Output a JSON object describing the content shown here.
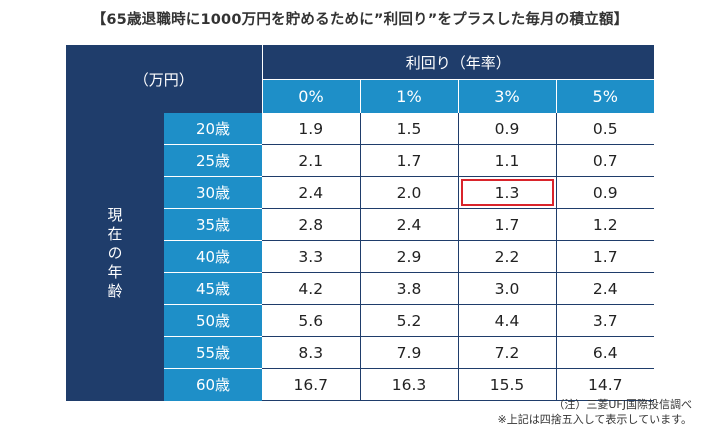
{
  "title": "【65歳退職時に1000万円を貯めるために”利回り”をプラスした毎月の積立額】",
  "table": {
    "unit_label": "（万円）",
    "rate_header": "利回り（年率）",
    "rates": [
      "0%",
      "1%",
      "3%",
      "5%"
    ],
    "row_group_label": "現在の年齢",
    "rows": [
      {
        "age": "20歳",
        "values": [
          "1.9",
          "1.5",
          "0.9",
          "0.5"
        ]
      },
      {
        "age": "25歳",
        "values": [
          "2.1",
          "1.7",
          "1.1",
          "0.7"
        ]
      },
      {
        "age": "30歳",
        "values": [
          "2.4",
          "2.0",
          "1.3",
          "0.9"
        ]
      },
      {
        "age": "35歳",
        "values": [
          "2.8",
          "2.4",
          "1.7",
          "1.2"
        ]
      },
      {
        "age": "40歳",
        "values": [
          "3.3",
          "2.9",
          "2.2",
          "1.7"
        ]
      },
      {
        "age": "45歳",
        "values": [
          "4.2",
          "3.8",
          "3.0",
          "2.4"
        ]
      },
      {
        "age": "50歳",
        "values": [
          "5.6",
          "5.2",
          "4.4",
          "3.7"
        ]
      },
      {
        "age": "55歳",
        "values": [
          "8.3",
          "7.9",
          "7.2",
          "6.4"
        ]
      },
      {
        "age": "60歳",
        "values": [
          "16.7",
          "16.3",
          "15.5",
          "14.7"
        ]
      }
    ],
    "highlight": {
      "row": 2,
      "col": 2,
      "color": "#d9242b"
    }
  },
  "notes": [
    "（注）三菱UFJ国際投信調べ",
    "※上記は四捨五入して表示しています。"
  ],
  "colors": {
    "header_navy": "#1f3d6b",
    "header_blue": "#1e8fc8"
  }
}
